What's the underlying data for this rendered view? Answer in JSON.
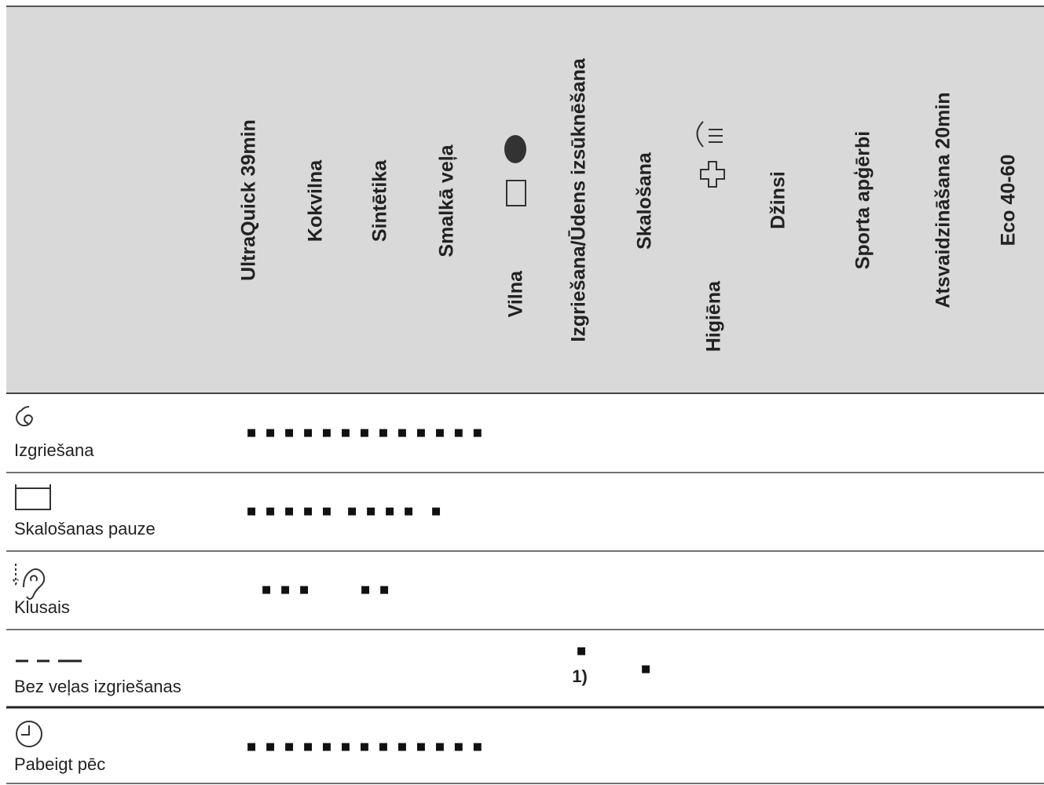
{
  "columns": [
    "UltraQuick 39min",
    "Kokvilna",
    "Sintētika",
    "Smalkā veļa",
    "Vilna",
    "Izgriešana/Ūdens izsūknēšana",
    "Skalošana",
    "Higiēna",
    "Džinsi",
    "Sporta apģērbi",
    "Atsvaidzināšana 20min",
    "Eco 40-60"
  ],
  "rows": [
    {
      "label": "Izgriešana",
      "marks": [
        "■■■■■■■■■■■■■"
      ]
    },
    {
      "label": "Skalošanas pauze",
      "marks": [
        "■■■■■",
        "■■■■",
        "■"
      ]
    },
    {
      "label": "Klusais",
      "marks": [
        "■■■",
        "■■"
      ]
    },
    {
      "label": "Bez veļas izgriešanas",
      "marks": [
        "■",
        "1)",
        "■"
      ]
    },
    {
      "label": "Pabeigt pēc",
      "marks": [
        "■■■■■■■■■■■■■"
      ]
    }
  ]
}
